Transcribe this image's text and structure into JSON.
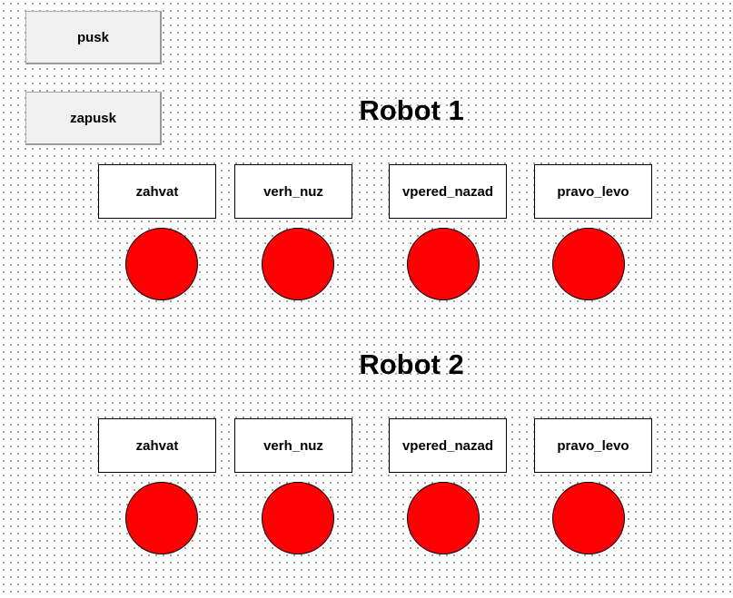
{
  "buttons": {
    "pusk": "pusk",
    "zapusk": "zapusk"
  },
  "robots": [
    {
      "title": "Robot 1",
      "axes": [
        "zahvat",
        "verh_nuz",
        "vpered_nazad",
        "pravo_levo"
      ],
      "indicator_colors": [
        "#ff0000",
        "#ff0000",
        "#ff0000",
        "#ff0000"
      ]
    },
    {
      "title": "Robot 2",
      "axes": [
        "zahvat",
        "verh_nuz",
        "vpered_nazad",
        "pravo_levo"
      ],
      "indicator_colors": [
        "#ff0000",
        "#ff0000",
        "#ff0000",
        "#ff0000"
      ]
    }
  ]
}
